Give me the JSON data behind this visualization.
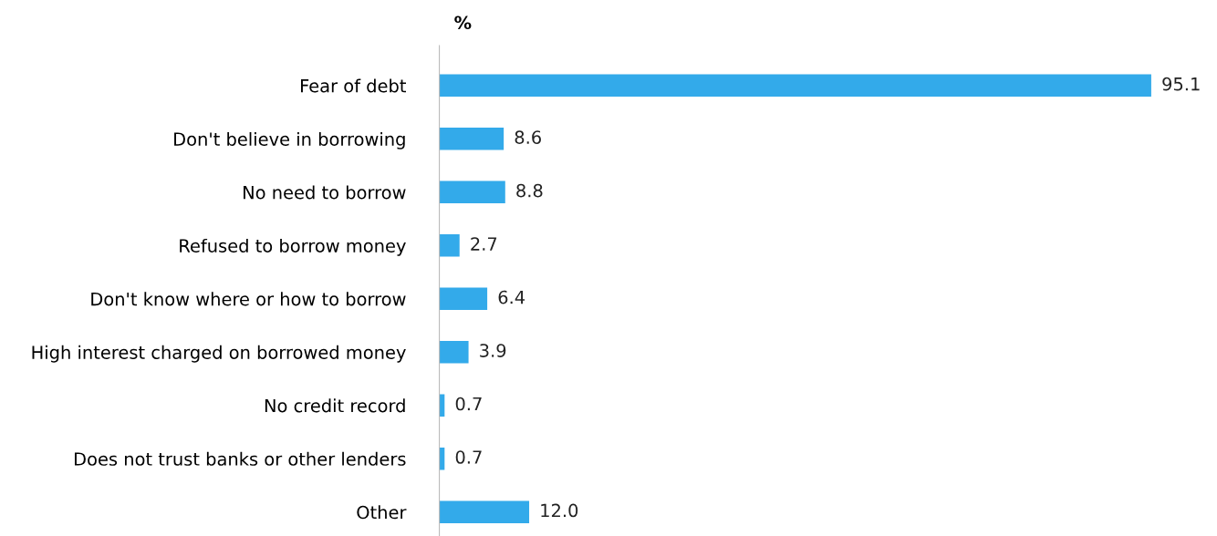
{
  "chart_data": {
    "type": "bar",
    "orientation": "horizontal",
    "title": "%",
    "categories": [
      "Fear of debt",
      "Don't believe in borrowing",
      "No need to borrow",
      "Refused to borrow money",
      "Don't know where or how to borrow",
      "High interest charged on borrowed money",
      "No credit record",
      "Does not trust banks or other lenders",
      "Other"
    ],
    "values": [
      95.1,
      8.6,
      8.8,
      2.7,
      6.4,
      3.9,
      0.7,
      0.7,
      12.0
    ],
    "value_labels": [
      "95.1",
      "8.6",
      "8.8",
      "2.7",
      "6.4",
      "3.9",
      "0.7",
      "0.7",
      "12.0"
    ],
    "color": "#33aaea",
    "grid": false,
    "legend": false
  }
}
